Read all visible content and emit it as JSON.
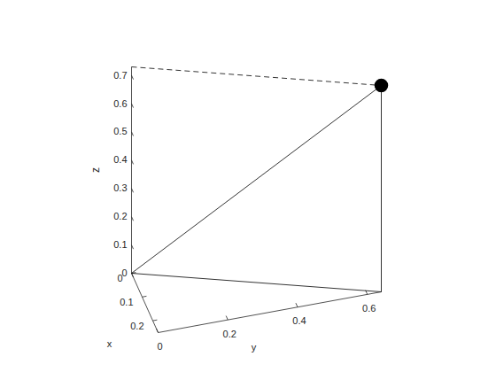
{
  "chart_data": {
    "type": "line3d",
    "x": [
      0.25
    ],
    "y": [
      0.64
    ],
    "z": [
      0.73
    ],
    "color": "#000000",
    "marker": "o",
    "xlabel": "x",
    "ylabel": "y",
    "zlabel": "z",
    "xlim": [
      0,
      0.25
    ],
    "ylim": [
      0,
      0.64
    ],
    "zlim": [
      0,
      0.73
    ],
    "xticks": [
      0,
      0.1,
      0.2
    ],
    "yticks": [
      0,
      0.2,
      0.4,
      0.6
    ],
    "zticks": [
      0,
      0.1,
      0.2,
      0.3,
      0.4,
      0.5,
      0.6,
      0.7
    ],
    "grid": false
  }
}
